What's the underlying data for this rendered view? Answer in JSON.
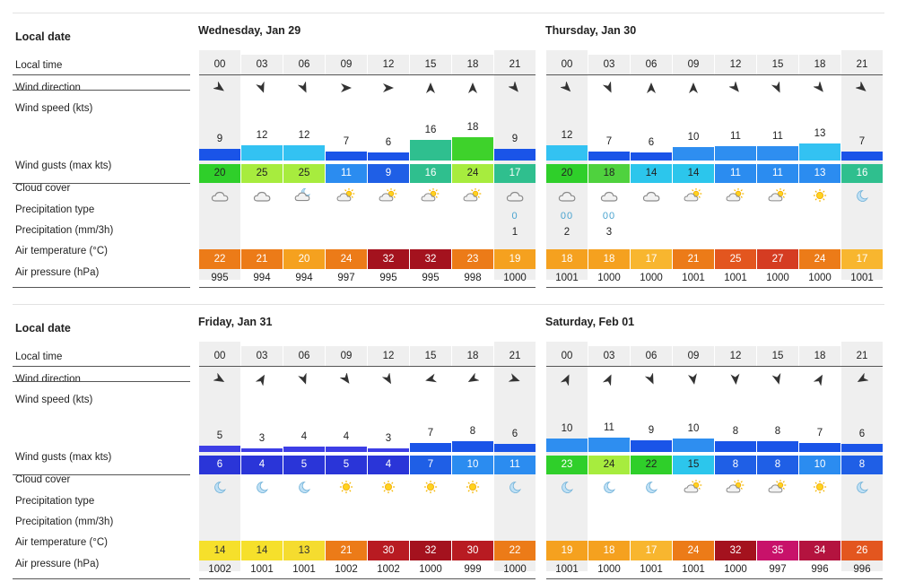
{
  "labels": {
    "local_date": "Local date",
    "local_time": "Local time",
    "wind_direction": "Wind direction",
    "wind_speed": "Wind speed  (kts)",
    "wind_gusts": "Wind gusts  (max kts)",
    "cloud_cover": "Cloud cover",
    "precip_type": "Precipitation type",
    "precip_amount": "Precipitation  (mm/3h)",
    "air_temp": "Air temperature  (°C)",
    "air_pressure": "Air pressure  (hPa)"
  },
  "blocks": [
    {
      "days": [
        {
          "date": "Wednesday, Jan 29",
          "hours": [
            {
              "time": "00",
              "dir": 125,
              "ws": 9,
              "gust": 20,
              "cloud": "cloud-icon",
              "ptype": "",
              "pmm": "",
              "temp": 22,
              "press": 995
            },
            {
              "time": "03",
              "dir": 160,
              "ws": 12,
              "gust": 25,
              "cloud": "cloud-icon",
              "ptype": "",
              "pmm": "",
              "temp": 21,
              "press": 994
            },
            {
              "time": "06",
              "dir": 155,
              "ws": 12,
              "gust": 25,
              "cloud": "cloud-moon-icon",
              "ptype": "",
              "pmm": "",
              "temp": 20,
              "press": 994
            },
            {
              "time": "09",
              "dir": 90,
              "ws": 7,
              "gust": 11,
              "cloud": "sun-cloud-icon",
              "ptype": "",
              "pmm": "",
              "temp": 24,
              "press": 997
            },
            {
              "time": "12",
              "dir": 90,
              "ws": 6,
              "gust": 9,
              "cloud": "sun-cloud-icon",
              "ptype": "",
              "pmm": "",
              "temp": 32,
              "press": 995
            },
            {
              "time": "15",
              "dir": 0,
              "ws": 16,
              "gust": 16,
              "cloud": "sun-cloud-icon",
              "ptype": "",
              "pmm": "",
              "temp": 32,
              "press": 995
            },
            {
              "time": "18",
              "dir": 0,
              "ws": 18,
              "gust": 24,
              "cloud": "sun-cloud-icon",
              "ptype": "",
              "pmm": "",
              "temp": 23,
              "press": 998
            },
            {
              "time": "21",
              "dir": 140,
              "ws": 9,
              "gust": 17,
              "cloud": "cloud-icon",
              "ptype": "0",
              "pmm": "1",
              "temp": 19,
              "press": 1000
            }
          ]
        },
        {
          "date": "Thursday, Jan 30",
          "hours": [
            {
              "time": "00",
              "dir": 135,
              "ws": 12,
              "gust": 20,
              "cloud": "cloud-icon",
              "ptype": "00",
              "pmm": "2",
              "temp": 18,
              "press": 1001
            },
            {
              "time": "03",
              "dir": 155,
              "ws": 7,
              "gust": 18,
              "cloud": "cloud-icon",
              "ptype": "00",
              "pmm": "3",
              "temp": 18,
              "press": 1000
            },
            {
              "time": "06",
              "dir": 0,
              "ws": 6,
              "gust": 14,
              "cloud": "cloud-icon",
              "ptype": "",
              "pmm": "",
              "temp": 17,
              "press": 1000
            },
            {
              "time": "09",
              "dir": 0,
              "ws": 10,
              "gust": 14,
              "cloud": "sun-cloud-icon",
              "ptype": "",
              "pmm": "",
              "temp": 21,
              "press": 1001
            },
            {
              "time": "12",
              "dir": 140,
              "ws": 11,
              "gust": 11,
              "cloud": "sun-cloud-icon",
              "ptype": "",
              "pmm": "",
              "temp": 25,
              "press": 1001
            },
            {
              "time": "15",
              "dir": 155,
              "ws": 11,
              "gust": 11,
              "cloud": "sun-cloud-icon",
              "ptype": "",
              "pmm": "",
              "temp": 27,
              "press": 1000
            },
            {
              "time": "18",
              "dir": 140,
              "ws": 13,
              "gust": 13,
              "cloud": "sun-icon",
              "ptype": "",
              "pmm": "",
              "temp": 24,
              "press": 1000
            },
            {
              "time": "21",
              "dir": 130,
              "ws": 7,
              "gust": 16,
              "cloud": "moon-icon",
              "ptype": "",
              "pmm": "",
              "temp": 17,
              "press": 1001
            }
          ]
        }
      ]
    },
    {
      "days": [
        {
          "date": "Friday, Jan 31",
          "hours": [
            {
              "time": "00",
              "dir": 120,
              "ws": 5,
              "gust": 6,
              "cloud": "moon-icon",
              "ptype": "",
              "pmm": "",
              "temp": 14,
              "press": 1002
            },
            {
              "time": "03",
              "dir": 30,
              "ws": 3,
              "gust": 4,
              "cloud": "moon-icon",
              "ptype": "",
              "pmm": "",
              "temp": 14,
              "press": 1001
            },
            {
              "time": "06",
              "dir": 160,
              "ws": 4,
              "gust": 5,
              "cloud": "moon-icon",
              "ptype": "",
              "pmm": "",
              "temp": 13,
              "press": 1001
            },
            {
              "time": "09",
              "dir": 145,
              "ws": 4,
              "gust": 5,
              "cloud": "sun-icon",
              "ptype": "",
              "pmm": "",
              "temp": 21,
              "press": 1002
            },
            {
              "time": "12",
              "dir": 150,
              "ws": 3,
              "gust": 4,
              "cloud": "sun-icon",
              "ptype": "",
              "pmm": "",
              "temp": 30,
              "press": 1002
            },
            {
              "time": "15",
              "dir": 255,
              "ws": 7,
              "gust": 7,
              "cloud": "sun-icon",
              "ptype": "",
              "pmm": "",
              "temp": 32,
              "press": 1000
            },
            {
              "time": "18",
              "dir": 240,
              "ws": 8,
              "gust": 10,
              "cloud": "sun-icon",
              "ptype": "",
              "pmm": "",
              "temp": 30,
              "press": 999
            },
            {
              "time": "21",
              "dir": 110,
              "ws": 6,
              "gust": 11,
              "cloud": "moon-icon",
              "ptype": "",
              "pmm": "",
              "temp": 22,
              "press": 1000
            }
          ]
        },
        {
          "date": "Saturday, Feb 01",
          "hours": [
            {
              "time": "00",
              "dir": 25,
              "ws": 10,
              "gust": 23,
              "cloud": "moon-icon",
              "ptype": "",
              "pmm": "",
              "temp": 19,
              "press": 1001
            },
            {
              "time": "03",
              "dir": 25,
              "ws": 11,
              "gust": 24,
              "cloud": "moon-icon",
              "ptype": "",
              "pmm": "",
              "temp": 18,
              "press": 1000
            },
            {
              "time": "06",
              "dir": 155,
              "ws": 9,
              "gust": 22,
              "cloud": "moon-icon",
              "ptype": "",
              "pmm": "",
              "temp": 17,
              "press": 1001
            },
            {
              "time": "09",
              "dir": 170,
              "ws": 10,
              "gust": 15,
              "cloud": "sun-cloud-icon",
              "ptype": "",
              "pmm": "",
              "temp": 24,
              "press": 1001
            },
            {
              "time": "12",
              "dir": 175,
              "ws": 8,
              "gust": 8,
              "cloud": "sun-cloud-icon",
              "ptype": "",
              "pmm": "",
              "temp": 32,
              "press": 1000
            },
            {
              "time": "15",
              "dir": 165,
              "ws": 8,
              "gust": 8,
              "cloud": "sun-cloud-icon",
              "ptype": "",
              "pmm": "",
              "temp": 35,
              "press": 997
            },
            {
              "time": "18",
              "dir": 30,
              "ws": 7,
              "gust": 10,
              "cloud": "sun-icon",
              "ptype": "",
              "pmm": "",
              "temp": 34,
              "press": 996
            },
            {
              "time": "21",
              "dir": 240,
              "ws": 6,
              "gust": 8,
              "cloud": "moon-icon",
              "ptype": "",
              "pmm": "",
              "temp": 26,
              "press": 996
            }
          ]
        }
      ]
    }
  ]
}
